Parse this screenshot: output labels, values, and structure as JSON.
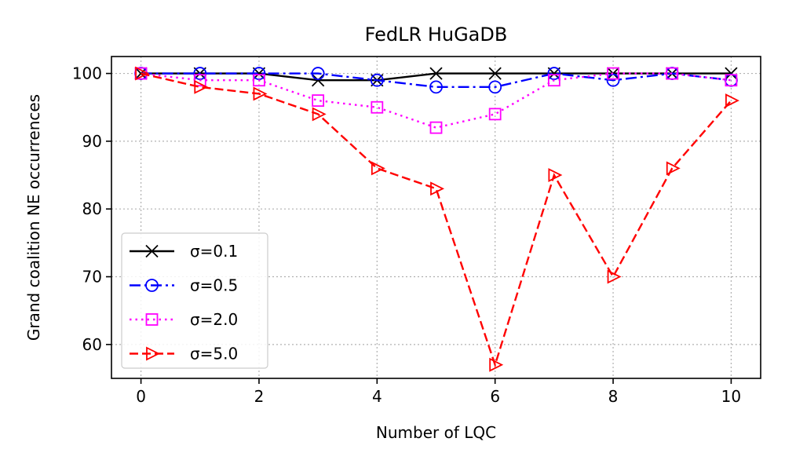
{
  "chart_data": {
    "type": "line",
    "title": "FedLR HuGaDB",
    "xlabel": "Number of LQC",
    "ylabel": "Grand coalition NE occurrences",
    "xlim": [
      -0.5,
      10.5
    ],
    "ylim": [
      55,
      102.5
    ],
    "xticks": [
      0,
      2,
      4,
      6,
      8,
      10
    ],
    "yticks": [
      60,
      70,
      80,
      90,
      100
    ],
    "grid": true,
    "legend_position": "lower-left",
    "x": [
      0,
      1,
      2,
      3,
      4,
      5,
      6,
      7,
      8,
      9,
      10
    ],
    "series": [
      {
        "name": "σ=0.1",
        "color": "#000000",
        "line_style": "solid",
        "marker": "x",
        "values": [
          100,
          100,
          100,
          99,
          99,
          100,
          100,
          100,
          100,
          100,
          100
        ]
      },
      {
        "name": "σ=0.5",
        "color": "#0000ff",
        "line_style": "dashdot",
        "marker": "circle",
        "values": [
          100,
          100,
          100,
          100,
          99,
          98,
          98,
          100,
          99,
          100,
          99
        ]
      },
      {
        "name": "σ=2.0",
        "color": "#ff00ff",
        "line_style": "dotted",
        "marker": "square",
        "values": [
          100,
          99,
          99,
          96,
          95,
          92,
          94,
          99,
          100,
          100,
          99
        ]
      },
      {
        "name": "σ=5.0",
        "color": "#ff0000",
        "line_style": "dashed",
        "marker": "triangle-right",
        "values": [
          100,
          98,
          97,
          94,
          86,
          83,
          57,
          85,
          70,
          86,
          96
        ]
      }
    ]
  }
}
